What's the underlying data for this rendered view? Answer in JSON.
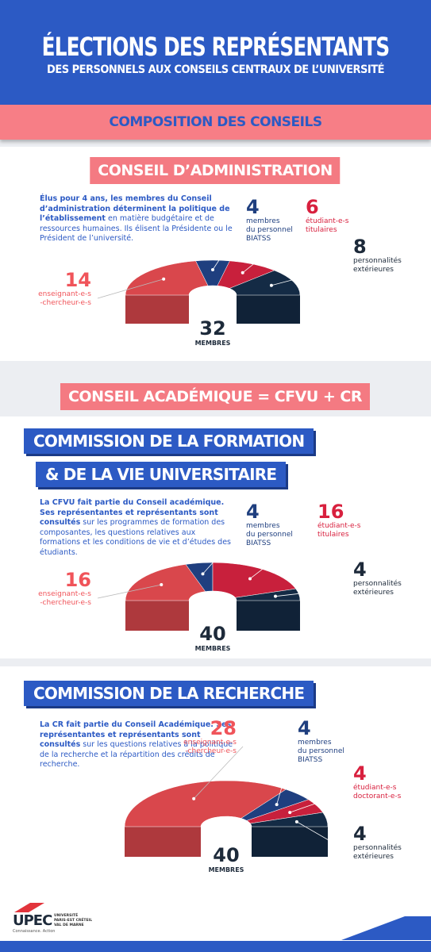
{
  "header": {
    "title": "ÉLECTIONS DES REPRÉSENTANTS",
    "subtitle": "DES PERSONNELS AUX CONSEILS CENTRAUX DE L’UNIVERSITÉ"
  },
  "composition_title": "COMPOSITION DES CONSEILS",
  "academic_title": "CONSEIL ACADÉMIQUE = CFVU + CR",
  "sections": [
    {
      "title": [
        "CONSEIL D’ADMINISTRATION"
      ],
      "description": [
        {
          "text": "Élus pour 4 ans, les membres du Conseil d’administration déterminent la politique de l’établissement",
          "bold": true
        },
        {
          "text": " en matière budgétaire et de ressources humaines. Ils élisent la Présidente ou le Président de l’université.",
          "bold": false
        }
      ]
    },
    {
      "title": [
        "COMMISSION DE LA FORMATION",
        "& DE LA VIE UNIVERSITAIRE"
      ],
      "description": [
        {
          "text": "La CFVU fait partie du Conseil académique. Ses représentantes et représentants sont consultés",
          "bold": true
        },
        {
          "text": " sur les programmes de formation des composantes, les questions relatives aux formations et les conditions de vie et d’études des étudiants.",
          "bold": false
        }
      ]
    },
    {
      "title": [
        "COMMISSION DE LA RECHERCHE"
      ],
      "description": [
        {
          "text": "La CR fait partie du Conseil Académique. Ses représentantes et représentants sont consultés",
          "bold": true
        },
        {
          "text": " sur les questions relatives à la politique de la recherche et la répartition des crédits de recherche.",
          "bold": false
        }
      ]
    }
  ],
  "chart_data": [
    {
      "type": "pie",
      "values": [
        14,
        4,
        6,
        8
      ],
      "categories": [
        "enseignant-e-s\n-chercheur-e-s",
        "membres\ndu personnel\nBIATSS",
        "étudiant-e-s\ntitulaires",
        "personnalités\nextérieures"
      ],
      "colors": [
        "#d9474c",
        "#1f3f7f",
        "#c8203c",
        "#142b45"
      ],
      "total": 32,
      "total_label": "MEMBRES"
    },
    {
      "type": "pie",
      "values": [
        16,
        4,
        16,
        4
      ],
      "categories": [
        "enseignant-e-s\n-chercheur-e-s",
        "membres\ndu personnel\nBIATSS",
        "étudiant-e-s\ntitulaires",
        "personnalités\nextérieures"
      ],
      "colors": [
        "#d9474c",
        "#1f3f7f",
        "#c8203c",
        "#142b45"
      ],
      "total": 40,
      "total_label": "MEMBRES"
    },
    {
      "type": "pie",
      "values": [
        28,
        4,
        4,
        4
      ],
      "categories": [
        "enseignant-e-s\n-chercheur-e-s",
        "membres\ndu personnel\nBIATSS",
        "étudiant-e-s\ndoctorant-e-s",
        "personnalités\nextérieures"
      ],
      "colors": [
        "#d9474c",
        "#1f3f7f",
        "#c8203c",
        "#142b45"
      ],
      "total": 40,
      "total_label": "MEMBRES"
    }
  ],
  "logo": {
    "name": "UPEC",
    "tagline": "Connaissance. Action",
    "university": "UNIVERSITÉ\nPARIS-EST CRÉTEIL\nVAL DE MARNE"
  }
}
